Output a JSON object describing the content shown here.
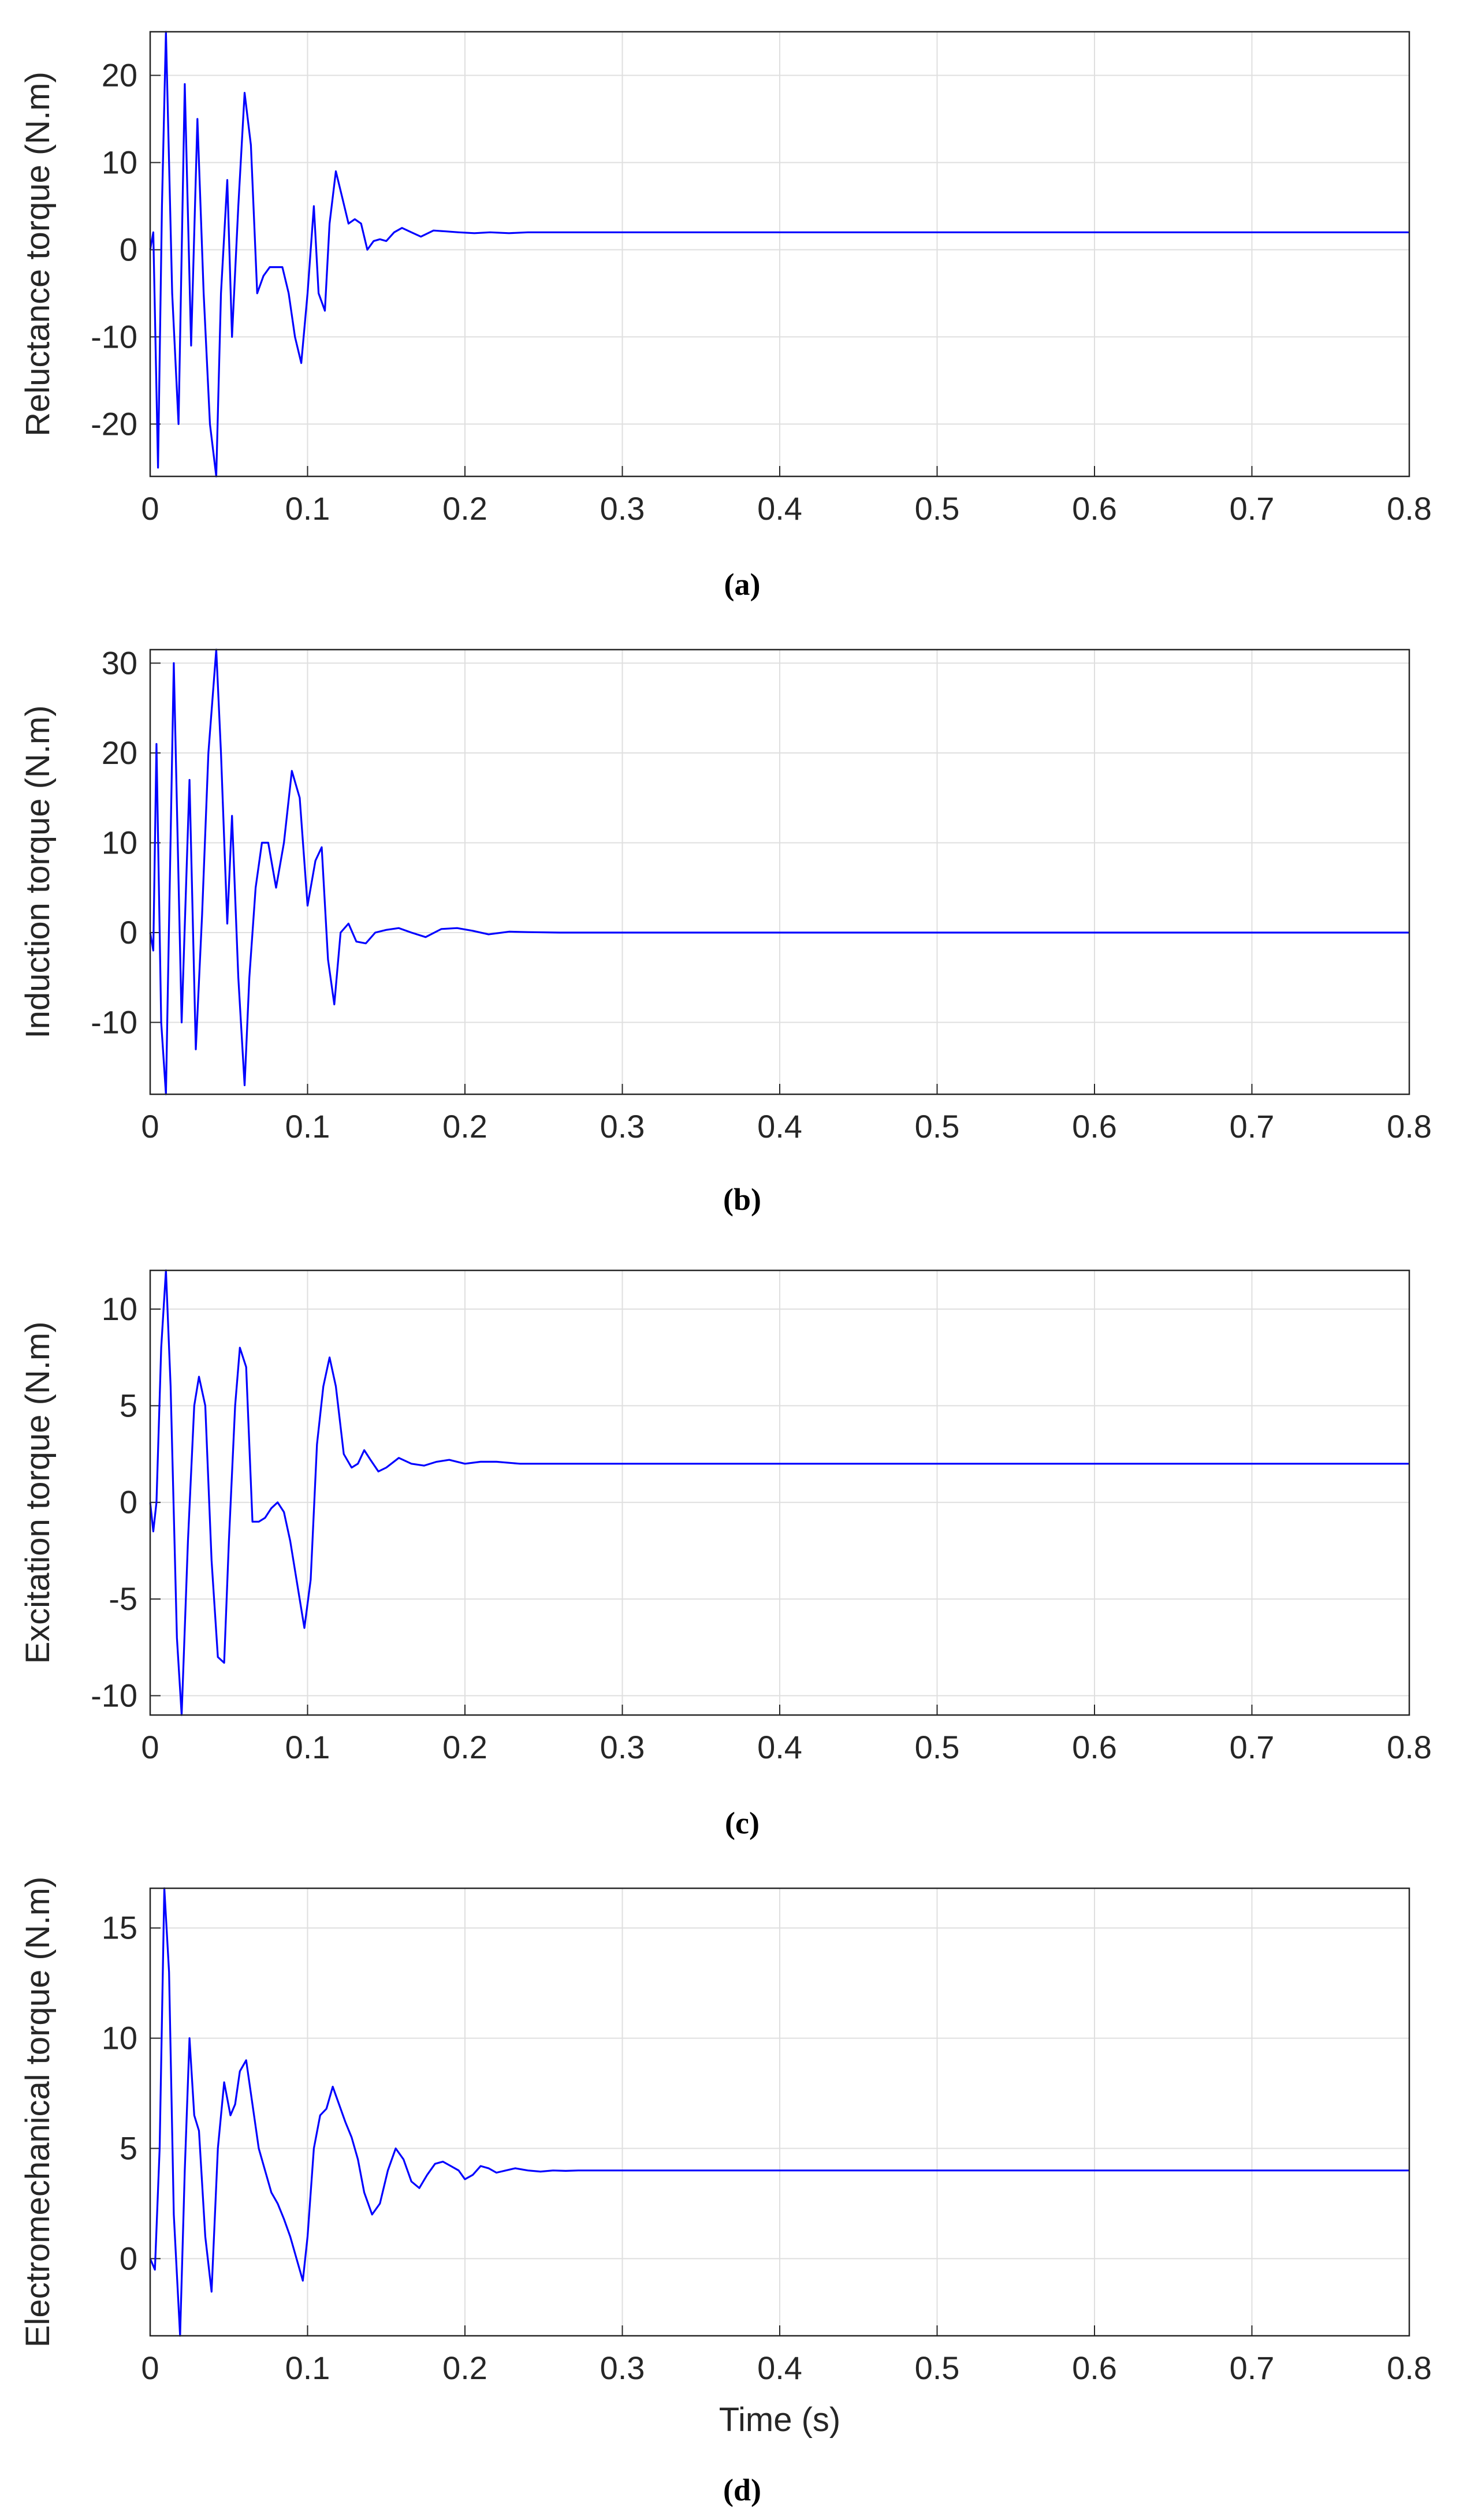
{
  "chart_data": [
    {
      "type": "line",
      "caption": "(a)",
      "ylabel": "Reluctance torque (N.m)",
      "xlabel": "",
      "xlim": [
        0,
        0.8
      ],
      "ylim": [
        -26,
        25
      ],
      "xticks": [
        "0",
        "0.1",
        "0.2",
        "0.3",
        "0.4",
        "0.5",
        "0.6",
        "0.7",
        "0.8"
      ],
      "yticks": [
        "-20",
        "-10",
        "0",
        "10",
        "20"
      ],
      "grid": true,
      "color": "#0000ff",
      "series": [
        {
          "x": [
            0,
            0.002,
            0.005,
            0.0075,
            0.01,
            0.014,
            0.018,
            0.022,
            0.026,
            0.03,
            0.034,
            0.038,
            0.042,
            0.045,
            0.049,
            0.052,
            0.056,
            0.06,
            0.064,
            0.068,
            0.072,
            0.076,
            0.08,
            0.084,
            0.088,
            0.092,
            0.096,
            0.1,
            0.104,
            0.107,
            0.111,
            0.114,
            0.118,
            0.122,
            0.126,
            0.13,
            0.134,
            0.138,
            0.142,
            0.146,
            0.15,
            0.155,
            0.16,
            0.166,
            0.172,
            0.18,
            0.188,
            0.196,
            0.206,
            0.216,
            0.228,
            0.24,
            0.26,
            0.3,
            0.8
          ],
          "y": [
            0,
            2,
            -25,
            5,
            25,
            -5,
            -20,
            19,
            -11,
            15,
            -5,
            -20,
            -26,
            -5,
            8,
            -10,
            5,
            18,
            12,
            -5,
            -3,
            -2,
            -2,
            -2,
            -5,
            -10,
            -13,
            -5,
            5,
            -5,
            -7,
            3,
            9,
            6,
            3,
            3.5,
            3,
            0,
            1,
            1.2,
            1,
            2,
            2.5,
            2,
            1.5,
            2.2,
            2.1,
            2,
            1.9,
            2,
            1.9,
            2,
            2,
            2,
            2
          ]
        }
      ]
    },
    {
      "type": "line",
      "caption": "(b)",
      "ylabel": "Induction torque (N.m)",
      "xlabel": "",
      "xlim": [
        0,
        0.8
      ],
      "ylim": [
        -18,
        31.5
      ],
      "xticks": [
        "0",
        "0.1",
        "0.2",
        "0.3",
        "0.4",
        "0.5",
        "0.6",
        "0.7",
        "0.8"
      ],
      "yticks": [
        "-10",
        "0",
        "10",
        "20",
        "30"
      ],
      "grid": true,
      "color": "#0000ff",
      "series": [
        {
          "x": [
            0,
            0.002,
            0.004,
            0.007,
            0.01,
            0.015,
            0.02,
            0.025,
            0.029,
            0.033,
            0.037,
            0.042,
            0.045,
            0.049,
            0.052,
            0.056,
            0.06,
            0.063,
            0.067,
            0.071,
            0.075,
            0.08,
            0.085,
            0.09,
            0.095,
            0.1,
            0.105,
            0.109,
            0.113,
            0.117,
            0.121,
            0.126,
            0.131,
            0.137,
            0.143,
            0.15,
            0.158,
            0.166,
            0.175,
            0.185,
            0.195,
            0.205,
            0.215,
            0.228,
            0.24,
            0.26,
            0.3,
            0.8
          ],
          "y": [
            0,
            -2,
            21,
            -10,
            -18,
            30,
            -10,
            17,
            -13,
            2,
            20,
            31.5,
            20,
            1,
            13,
            -5,
            -17,
            -5,
            5,
            10,
            10,
            5,
            10,
            18,
            15,
            3,
            8,
            9.5,
            -3,
            -8,
            0,
            1,
            -1,
            -1.2,
            0,
            0.3,
            0.5,
            0,
            -0.5,
            0.4,
            0.5,
            0.2,
            -0.2,
            0.1,
            0.05,
            0,
            0,
            0
          ]
        }
      ]
    },
    {
      "type": "line",
      "caption": "(c)",
      "ylabel": "Excitation torque (N.m)",
      "xlabel": "",
      "xlim": [
        0,
        0.8
      ],
      "ylim": [
        -11,
        12
      ],
      "xticks": [
        "0",
        "0.1",
        "0.2",
        "0.3",
        "0.4",
        "0.5",
        "0.6",
        "0.7",
        "0.8"
      ],
      "yticks": [
        "-10",
        "-5",
        "0",
        "5",
        "10"
      ],
      "grid": true,
      "color": "#0000ff",
      "series": [
        {
          "x": [
            0,
            0.002,
            0.004,
            0.007,
            0.01,
            0.013,
            0.017,
            0.02,
            0.024,
            0.028,
            0.031,
            0.035,
            0.039,
            0.043,
            0.047,
            0.05,
            0.054,
            0.057,
            0.061,
            0.065,
            0.069,
            0.073,
            0.077,
            0.081,
            0.085,
            0.089,
            0.094,
            0.098,
            0.102,
            0.106,
            0.11,
            0.114,
            0.118,
            0.123,
            0.128,
            0.132,
            0.136,
            0.14,
            0.145,
            0.15,
            0.158,
            0.166,
            0.174,
            0.182,
            0.19,
            0.2,
            0.21,
            0.22,
            0.235,
            0.25,
            0.27,
            0.3,
            0.8
          ],
          "y": [
            0,
            -1.5,
            0,
            8,
            12,
            6,
            -7,
            -11,
            -2,
            5,
            6.5,
            5,
            -3,
            -8,
            -8.3,
            -2,
            5,
            8,
            7,
            -1,
            -1,
            -0.8,
            -0.3,
            0,
            -0.5,
            -2,
            -4.5,
            -6.5,
            -4,
            3,
            6,
            7.5,
            6,
            2.5,
            1.8,
            2,
            2.7,
            2.2,
            1.6,
            1.8,
            2.3,
            2,
            1.9,
            2.1,
            2.2,
            2,
            2.1,
            2.1,
            2,
            2,
            2,
            2,
            2
          ]
        }
      ]
    },
    {
      "type": "line",
      "caption": "(d)",
      "ylabel": "Electromechanical torque (N.m)",
      "xlabel": "Time (s)",
      "xlim": [
        0,
        0.8
      ],
      "ylim": [
        -3.5,
        16.8
      ],
      "xticks": [
        "0",
        "0.1",
        "0.2",
        "0.3",
        "0.4",
        "0.5",
        "0.6",
        "0.7",
        "0.8"
      ],
      "yticks": [
        "0",
        "5",
        "10",
        "15"
      ],
      "grid": true,
      "color": "#0000ff",
      "series": [
        {
          "x": [
            0,
            0.003,
            0.006,
            0.009,
            0.012,
            0.015,
            0.019,
            0.022,
            0.025,
            0.028,
            0.031,
            0.035,
            0.039,
            0.043,
            0.047,
            0.051,
            0.054,
            0.057,
            0.061,
            0.065,
            0.069,
            0.073,
            0.077,
            0.081,
            0.085,
            0.089,
            0.093,
            0.097,
            0.1,
            0.104,
            0.108,
            0.112,
            0.116,
            0.12,
            0.124,
            0.128,
            0.132,
            0.136,
            0.141,
            0.146,
            0.151,
            0.156,
            0.161,
            0.166,
            0.171,
            0.176,
            0.181,
            0.186,
            0.191,
            0.196,
            0.2,
            0.205,
            0.21,
            0.215,
            0.22,
            0.226,
            0.232,
            0.24,
            0.248,
            0.256,
            0.264,
            0.272,
            0.28,
            0.3,
            0.8
          ],
          "y": [
            0,
            -0.5,
            5,
            16.8,
            13,
            2,
            -3.5,
            4,
            10,
            6.5,
            5.8,
            1,
            -1.5,
            5,
            8,
            6.5,
            7,
            8.5,
            9,
            7,
            5,
            4,
            3,
            2.5,
            1.8,
            1,
            0,
            -1,
            1,
            5,
            6.5,
            6.8,
            7.8,
            7,
            6.2,
            5.5,
            4.5,
            3,
            2,
            2.5,
            4,
            5,
            4.5,
            3.5,
            3.2,
            3.8,
            4.3,
            4.4,
            4.2,
            4,
            3.6,
            3.8,
            4.2,
            4.1,
            3.9,
            4,
            4.1,
            4,
            3.95,
            4,
            3.98,
            4,
            4,
            4,
            4
          ]
        }
      ]
    }
  ]
}
